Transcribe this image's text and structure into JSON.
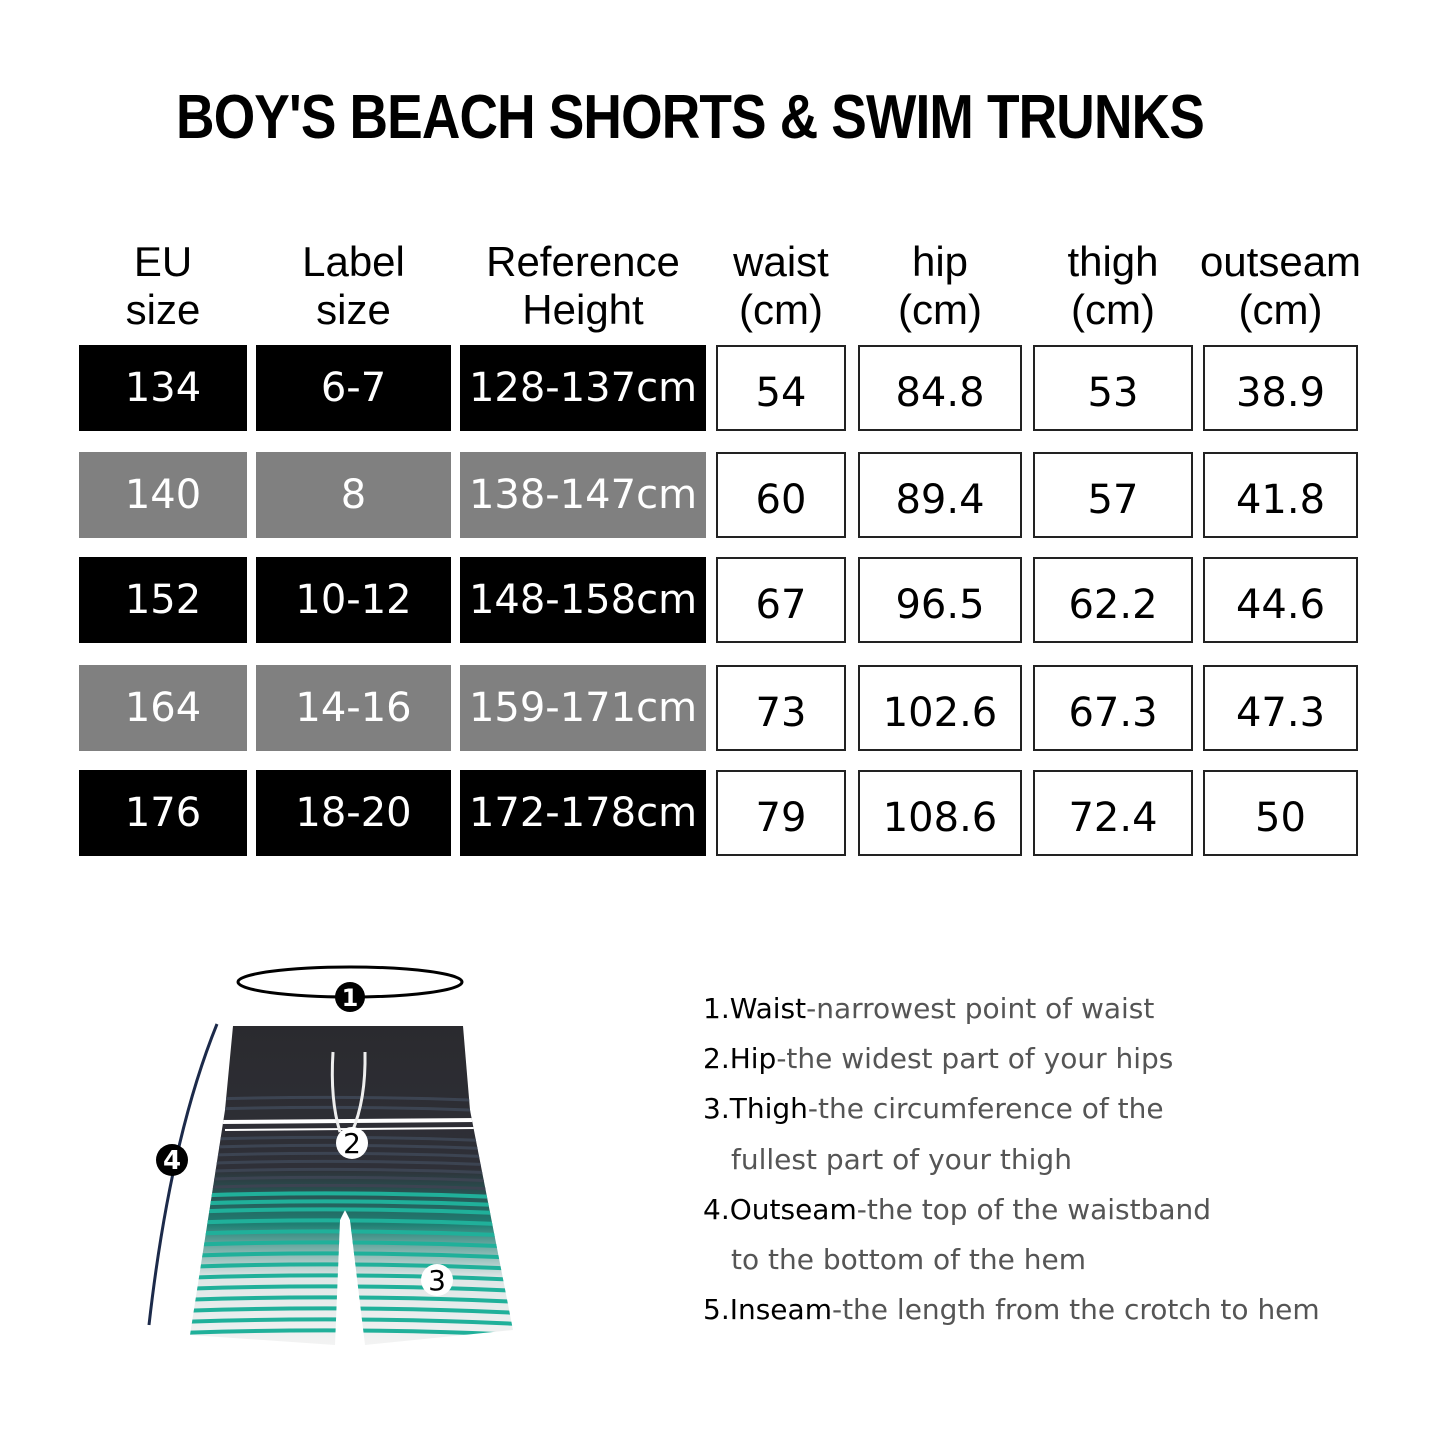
{
  "title": "BOY'S BEACH SHORTS & SWIM TRUNKS",
  "headers": [
    {
      "line1": "EU",
      "line2": "size"
    },
    {
      "line1": "Label",
      "line2": "size"
    },
    {
      "line1": "Reference",
      "line2": "Height"
    },
    {
      "line1": "waist",
      "line2": "(cm)"
    },
    {
      "line1": "hip",
      "line2": "(cm)"
    },
    {
      "line1": "thigh",
      "line2": "(cm)"
    },
    {
      "line1": "outseam",
      "line2": "(cm)"
    }
  ],
  "rows": [
    {
      "style": "dark",
      "cells": [
        "134",
        "6-7",
        "128-137cm",
        "54",
        "84.8",
        "53",
        "38.9"
      ]
    },
    {
      "style": "gray",
      "cells": [
        "140",
        "8",
        "138-147cm",
        "60",
        "89.4",
        "57",
        "41.8"
      ]
    },
    {
      "style": "dark",
      "cells": [
        "152",
        "10-12",
        "148-158cm",
        "67",
        "96.5",
        "62.2",
        "44.6"
      ]
    },
    {
      "style": "gray",
      "cells": [
        "164",
        "14-16",
        "159-171cm",
        "73",
        "102.6",
        "67.3",
        "47.3"
      ]
    },
    {
      "style": "dark",
      "cells": [
        "176",
        "18-20",
        "172-178cm",
        "79",
        "108.6",
        "72.4",
        "50"
      ]
    }
  ],
  "colors": {
    "dark": "#000000",
    "gray": "#808080",
    "stripe": "#20b09a",
    "shorts_top": "#2a2a2e"
  },
  "diagram_markers": [
    "1",
    "2",
    "3",
    "4"
  ],
  "legend": [
    {
      "term": "1.Waist",
      "desc": "-narrowest point of  waist"
    },
    {
      "term": "2.Hip",
      "desc": "-the widest part of your hips"
    },
    {
      "term": "3.Thigh",
      "desc": "-the circumference of the",
      "cont": "fullest part of  your thigh"
    },
    {
      "term": "4.Outseam",
      "desc": "-the top of the waistband",
      "cont": "to the bottom  of the  hem"
    },
    {
      "term": "5.Inseam",
      "desc": "-the length from the crotch to hem"
    }
  ]
}
